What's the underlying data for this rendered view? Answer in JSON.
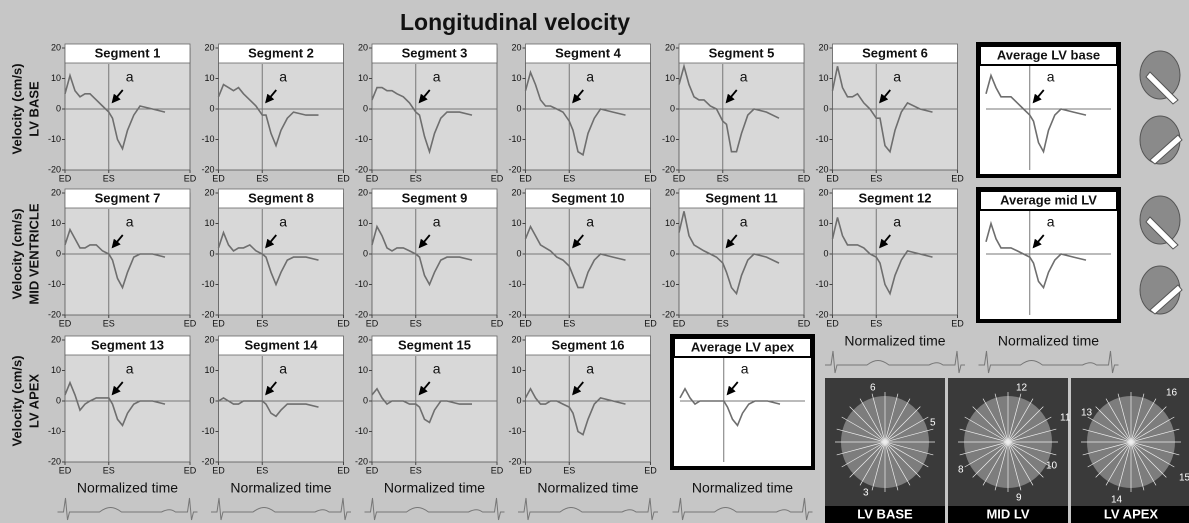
{
  "title": "Longitudinal velocity",
  "row_labels": [
    [
      "Velocity (cm/s)",
      "LV BASE"
    ],
    [
      "Velocity (cm/s)",
      "MID VENTRICLE"
    ],
    [
      "Velocity (cm/s)",
      "LV APEX"
    ]
  ],
  "images": [
    {
      "label": "LV BASE",
      "numbers": [
        "6",
        "5",
        "3"
      ]
    },
    {
      "label": "MID LV",
      "numbers": [
        "12",
        "11",
        "10",
        "9",
        "8"
      ]
    },
    {
      "label": "LV APEX",
      "numbers": [
        "13",
        "16",
        "15",
        "14"
      ]
    }
  ],
  "chart_data": [
    {
      "type": "line",
      "title": "Segment 1",
      "x": [
        0,
        0.04,
        0.08,
        0.12,
        0.16,
        0.2,
        0.25,
        0.3,
        0.35,
        0.38,
        0.42,
        0.46,
        0.5,
        0.55,
        0.6,
        0.7,
        0.8
      ],
      "values": [
        5,
        11,
        6,
        4,
        5,
        5,
        3,
        1,
        -1,
        -3,
        -10,
        -13,
        -7,
        -2,
        1,
        0,
        -1
      ],
      "color": "#6e6e6e",
      "xlim": [
        0,
        1
      ],
      "ylim": [
        -20,
        20
      ],
      "yticks": [
        -20,
        -10,
        0,
        10,
        20
      ],
      "xticks": [
        {
          "value": 0,
          "label": "ED"
        },
        {
          "value": 0.35,
          "label": "ES"
        },
        {
          "value": 1,
          "label": "ED"
        }
      ],
      "hline": 0,
      "vline": 0.35,
      "annotation": "a"
    },
    {
      "type": "line",
      "title": "Segment 2",
      "x": [
        0,
        0.04,
        0.08,
        0.12,
        0.16,
        0.2,
        0.25,
        0.3,
        0.35,
        0.38,
        0.42,
        0.46,
        0.5,
        0.55,
        0.6,
        0.7,
        0.8
      ],
      "values": [
        4,
        8,
        7,
        6,
        7,
        5,
        3,
        1,
        -2,
        -2,
        -8,
        -12,
        -7,
        -3,
        -1,
        -2,
        -2
      ],
      "color": "#6e6e6e",
      "xlim": [
        0,
        1
      ],
      "ylim": [
        -20,
        20
      ],
      "yticks": [
        -20,
        -10,
        0,
        10,
        20
      ],
      "xticks": [
        {
          "value": 0,
          "label": "ED"
        },
        {
          "value": 0.35,
          "label": "ES"
        },
        {
          "value": 1,
          "label": "ED"
        }
      ],
      "hline": 0,
      "vline": 0.35,
      "annotation": "a"
    },
    {
      "type": "line",
      "title": "Segment 3",
      "x": [
        0,
        0.04,
        0.08,
        0.12,
        0.16,
        0.2,
        0.25,
        0.3,
        0.35,
        0.38,
        0.42,
        0.46,
        0.5,
        0.55,
        0.6,
        0.7,
        0.8
      ],
      "values": [
        3,
        7,
        7,
        6,
        6,
        5,
        4,
        2,
        -1,
        -2,
        -9,
        -14,
        -8,
        -3,
        -1,
        -1,
        -2
      ],
      "color": "#6e6e6e",
      "xlim": [
        0,
        1
      ],
      "ylim": [
        -20,
        20
      ],
      "yticks": [
        -20,
        -10,
        0,
        10,
        20
      ],
      "xticks": [
        {
          "value": 0,
          "label": "ED"
        },
        {
          "value": 0.35,
          "label": "ES"
        },
        {
          "value": 1,
          "label": "ED"
        }
      ],
      "hline": 0,
      "vline": 0.35,
      "annotation": "a"
    },
    {
      "type": "line",
      "title": "Segment 4",
      "x": [
        0,
        0.04,
        0.08,
        0.12,
        0.16,
        0.2,
        0.25,
        0.3,
        0.35,
        0.38,
        0.42,
        0.46,
        0.5,
        0.55,
        0.6,
        0.7,
        0.8
      ],
      "values": [
        6,
        12,
        8,
        3,
        1,
        1,
        0,
        -1,
        -4,
        -7,
        -14,
        -15,
        -8,
        -3,
        0,
        -1,
        -2
      ],
      "color": "#6e6e6e",
      "xlim": [
        0,
        1
      ],
      "ylim": [
        -20,
        20
      ],
      "yticks": [
        -20,
        -10,
        0,
        10,
        20
      ],
      "xticks": [
        {
          "value": 0,
          "label": "ED"
        },
        {
          "value": 0.35,
          "label": "ES"
        },
        {
          "value": 1,
          "label": "ED"
        }
      ],
      "hline": 0,
      "vline": 0.35,
      "annotation": "a"
    },
    {
      "type": "line",
      "title": "Segment 5",
      "x": [
        0,
        0.04,
        0.08,
        0.12,
        0.16,
        0.2,
        0.25,
        0.3,
        0.35,
        0.38,
        0.42,
        0.46,
        0.5,
        0.55,
        0.6,
        0.7,
        0.8
      ],
      "values": [
        8,
        14,
        8,
        4,
        3,
        3,
        1,
        0,
        -4,
        -5,
        -14,
        -14,
        -8,
        -2,
        0,
        -1,
        -3
      ],
      "color": "#6e6e6e",
      "xlim": [
        0,
        1
      ],
      "ylim": [
        -20,
        20
      ],
      "yticks": [
        -20,
        -10,
        0,
        10,
        20
      ],
      "xticks": [
        {
          "value": 0,
          "label": "ED"
        },
        {
          "value": 0.35,
          "label": "ES"
        },
        {
          "value": 1,
          "label": "ED"
        }
      ],
      "hline": 0,
      "vline": 0.35,
      "annotation": "a"
    },
    {
      "type": "line",
      "title": "Segment 6",
      "x": [
        0,
        0.04,
        0.08,
        0.12,
        0.16,
        0.2,
        0.25,
        0.3,
        0.35,
        0.38,
        0.42,
        0.46,
        0.5,
        0.55,
        0.6,
        0.7,
        0.8
      ],
      "values": [
        6,
        14,
        7,
        4,
        4,
        5,
        2,
        0,
        -3,
        -3,
        -12,
        -14,
        -7,
        -1,
        2,
        0,
        -1
      ],
      "color": "#6e6e6e",
      "xlim": [
        0,
        1
      ],
      "ylim": [
        -20,
        20
      ],
      "yticks": [
        -20,
        -10,
        0,
        10,
        20
      ],
      "xticks": [
        {
          "value": 0,
          "label": "ED"
        },
        {
          "value": 0.35,
          "label": "ES"
        },
        {
          "value": 1,
          "label": "ED"
        }
      ],
      "hline": 0,
      "vline": 0.35,
      "annotation": "a"
    },
    {
      "type": "line",
      "title": "Segment 7",
      "x": [
        0,
        0.04,
        0.08,
        0.12,
        0.16,
        0.2,
        0.25,
        0.3,
        0.35,
        0.38,
        0.42,
        0.46,
        0.5,
        0.55,
        0.6,
        0.7,
        0.8
      ],
      "values": [
        3,
        8,
        5,
        2,
        2,
        3,
        3,
        1,
        0,
        -2,
        -8,
        -11,
        -6,
        -1,
        0,
        0,
        -1
      ],
      "color": "#6e6e6e",
      "xlim": [
        0,
        1
      ],
      "ylim": [
        -20,
        20
      ],
      "yticks": [
        -20,
        -10,
        0,
        10,
        20
      ],
      "xticks": [
        {
          "value": 0,
          "label": "ED"
        },
        {
          "value": 0.35,
          "label": "ES"
        },
        {
          "value": 1,
          "label": "ED"
        }
      ],
      "hline": 0,
      "vline": 0.35,
      "annotation": "a"
    },
    {
      "type": "line",
      "title": "Segment 8",
      "x": [
        0,
        0.04,
        0.08,
        0.12,
        0.16,
        0.2,
        0.25,
        0.3,
        0.35,
        0.38,
        0.42,
        0.46,
        0.5,
        0.55,
        0.6,
        0.7,
        0.8
      ],
      "values": [
        2,
        7,
        3,
        1,
        2,
        2,
        3,
        1,
        0,
        -1,
        -6,
        -10,
        -6,
        -2,
        -1,
        -1,
        -2
      ],
      "color": "#6e6e6e",
      "xlim": [
        0,
        1
      ],
      "ylim": [
        -20,
        20
      ],
      "yticks": [
        -20,
        -10,
        0,
        10,
        20
      ],
      "xticks": [
        {
          "value": 0,
          "label": "ED"
        },
        {
          "value": 0.35,
          "label": "ES"
        },
        {
          "value": 1,
          "label": "ED"
        }
      ],
      "hline": 0,
      "vline": 0.35,
      "annotation": "a"
    },
    {
      "type": "line",
      "title": "Segment 9",
      "x": [
        0,
        0.04,
        0.08,
        0.12,
        0.16,
        0.2,
        0.25,
        0.3,
        0.35,
        0.38,
        0.42,
        0.46,
        0.5,
        0.55,
        0.6,
        0.7,
        0.8
      ],
      "values": [
        3,
        9,
        6,
        2,
        1,
        2,
        2,
        1,
        0,
        -1,
        -7,
        -10,
        -6,
        -2,
        -1,
        -1,
        -2
      ],
      "color": "#6e6e6e",
      "xlim": [
        0,
        1
      ],
      "ylim": [
        -20,
        20
      ],
      "yticks": [
        -20,
        -10,
        0,
        10,
        20
      ],
      "xticks": [
        {
          "value": 0,
          "label": "ED"
        },
        {
          "value": 0.35,
          "label": "ES"
        },
        {
          "value": 1,
          "label": "ED"
        }
      ],
      "hline": 0,
      "vline": 0.35,
      "annotation": "a"
    },
    {
      "type": "line",
      "title": "Segment 10",
      "x": [
        0,
        0.04,
        0.08,
        0.12,
        0.16,
        0.2,
        0.25,
        0.3,
        0.35,
        0.38,
        0.42,
        0.46,
        0.5,
        0.55,
        0.6,
        0.7,
        0.8
      ],
      "values": [
        5,
        9,
        6,
        3,
        2,
        1,
        -1,
        -2,
        -4,
        -7,
        -11,
        -11,
        -6,
        -2,
        0,
        -1,
        -2
      ],
      "color": "#6e6e6e",
      "xlim": [
        0,
        1
      ],
      "ylim": [
        -20,
        20
      ],
      "yticks": [
        -20,
        -10,
        0,
        10,
        20
      ],
      "xticks": [
        {
          "value": 0,
          "label": "ED"
        },
        {
          "value": 0.35,
          "label": "ES"
        },
        {
          "value": 1,
          "label": "ED"
        }
      ],
      "hline": 0,
      "vline": 0.35,
      "annotation": "a"
    },
    {
      "type": "line",
      "title": "Segment 11",
      "x": [
        0,
        0.04,
        0.08,
        0.12,
        0.16,
        0.2,
        0.25,
        0.3,
        0.35,
        0.38,
        0.42,
        0.46,
        0.5,
        0.55,
        0.6,
        0.7,
        0.8
      ],
      "values": [
        7,
        14,
        6,
        3,
        2,
        1,
        0,
        -1,
        -3,
        -6,
        -11,
        -13,
        -7,
        -2,
        0,
        -1,
        -3
      ],
      "color": "#6e6e6e",
      "xlim": [
        0,
        1
      ],
      "ylim": [
        -20,
        20
      ],
      "yticks": [
        -20,
        -10,
        0,
        10,
        20
      ],
      "xticks": [
        {
          "value": 0,
          "label": "ED"
        },
        {
          "value": 0.35,
          "label": "ES"
        },
        {
          "value": 1,
          "label": "ED"
        }
      ],
      "hline": 0,
      "vline": 0.35,
      "annotation": "a"
    },
    {
      "type": "line",
      "title": "Segment 12",
      "x": [
        0,
        0.04,
        0.08,
        0.12,
        0.16,
        0.2,
        0.25,
        0.3,
        0.35,
        0.38,
        0.42,
        0.46,
        0.5,
        0.55,
        0.6,
        0.7,
        0.8
      ],
      "values": [
        5,
        12,
        6,
        3,
        3,
        3,
        2,
        0,
        -1,
        -3,
        -10,
        -13,
        -7,
        -2,
        1,
        0,
        -1
      ],
      "color": "#6e6e6e",
      "xlim": [
        0,
        1
      ],
      "ylim": [
        -20,
        20
      ],
      "yticks": [
        -20,
        -10,
        0,
        10,
        20
      ],
      "xticks": [
        {
          "value": 0,
          "label": "ED"
        },
        {
          "value": 0.35,
          "label": "ES"
        },
        {
          "value": 1,
          "label": "ED"
        }
      ],
      "hline": 0,
      "vline": 0.35,
      "annotation": "a",
      "xlabel": "Normalized time"
    },
    {
      "type": "line",
      "title": "Segment 13",
      "x": [
        0,
        0.04,
        0.08,
        0.12,
        0.16,
        0.2,
        0.25,
        0.3,
        0.35,
        0.38,
        0.42,
        0.46,
        0.5,
        0.55,
        0.6,
        0.7,
        0.8
      ],
      "values": [
        2,
        6,
        2,
        -3,
        -1,
        0,
        1,
        1,
        1,
        -1,
        -6,
        -8,
        -4,
        -1,
        0,
        0,
        -1
      ],
      "color": "#6e6e6e",
      "xlim": [
        0,
        1
      ],
      "ylim": [
        -20,
        20
      ],
      "yticks": [
        -20,
        -10,
        0,
        10,
        20
      ],
      "xticks": [
        {
          "value": 0,
          "label": "ED"
        },
        {
          "value": 0.35,
          "label": "ES"
        },
        {
          "value": 1,
          "label": "ED"
        }
      ],
      "hline": 0,
      "vline": 0.35,
      "annotation": "a",
      "xlabel": "Normalized time"
    },
    {
      "type": "line",
      "title": "Segment 14",
      "x": [
        0,
        0.04,
        0.08,
        0.12,
        0.16,
        0.2,
        0.25,
        0.3,
        0.35,
        0.38,
        0.42,
        0.46,
        0.5,
        0.55,
        0.6,
        0.7,
        0.8
      ],
      "values": [
        0,
        1,
        0,
        -1,
        -1,
        0,
        0,
        0,
        0,
        -1,
        -4,
        -5,
        -3,
        -1,
        -1,
        -1,
        -2
      ],
      "color": "#6e6e6e",
      "xlim": [
        0,
        1
      ],
      "ylim": [
        -20,
        20
      ],
      "yticks": [
        -20,
        -10,
        0,
        10,
        20
      ],
      "xticks": [
        {
          "value": 0,
          "label": "ED"
        },
        {
          "value": 0.35,
          "label": "ES"
        },
        {
          "value": 1,
          "label": "ED"
        }
      ],
      "hline": 0,
      "vline": 0.35,
      "annotation": "a",
      "xlabel": "Normalized time"
    },
    {
      "type": "line",
      "title": "Segment 15",
      "x": [
        0,
        0.04,
        0.08,
        0.12,
        0.16,
        0.2,
        0.25,
        0.3,
        0.35,
        0.38,
        0.42,
        0.46,
        0.5,
        0.55,
        0.6,
        0.7,
        0.8
      ],
      "values": [
        2,
        4,
        1,
        -1,
        0,
        0,
        0,
        -1,
        -1,
        -2,
        -6,
        -7,
        -3,
        0,
        0,
        -1,
        -1
      ],
      "color": "#6e6e6e",
      "xlim": [
        0,
        1
      ],
      "ylim": [
        -20,
        20
      ],
      "yticks": [
        -20,
        -10,
        0,
        10,
        20
      ],
      "xticks": [
        {
          "value": 0,
          "label": "ED"
        },
        {
          "value": 0.35,
          "label": "ES"
        },
        {
          "value": 1,
          "label": "ED"
        }
      ],
      "hline": 0,
      "vline": 0.35,
      "annotation": "a",
      "xlabel": "Normalized time"
    },
    {
      "type": "line",
      "title": "Segment 16",
      "x": [
        0,
        0.04,
        0.08,
        0.12,
        0.16,
        0.2,
        0.25,
        0.3,
        0.35,
        0.38,
        0.42,
        0.46,
        0.5,
        0.55,
        0.6,
        0.7,
        0.8
      ],
      "values": [
        1,
        4,
        1,
        -1,
        -1,
        0,
        0,
        -1,
        -2,
        -4,
        -10,
        -11,
        -6,
        -1,
        1,
        0,
        -1
      ],
      "color": "#6e6e6e",
      "xlim": [
        0,
        1
      ],
      "ylim": [
        -20,
        20
      ],
      "yticks": [
        -20,
        -10,
        0,
        10,
        20
      ],
      "xticks": [
        {
          "value": 0,
          "label": "ED"
        },
        {
          "value": 0.35,
          "label": "ES"
        },
        {
          "value": 1,
          "label": "ED"
        }
      ],
      "hline": 0,
      "vline": 0.35,
      "annotation": "a",
      "xlabel": "Normalized time"
    },
    {
      "type": "line",
      "title": "Average LV base",
      "x": [
        0,
        0.04,
        0.08,
        0.12,
        0.16,
        0.2,
        0.25,
        0.3,
        0.35,
        0.38,
        0.42,
        0.46,
        0.5,
        0.55,
        0.6,
        0.7,
        0.8
      ],
      "values": [
        5,
        11,
        7,
        4,
        4,
        4,
        2,
        0,
        -2,
        -4,
        -11,
        -14,
        -7,
        -2,
        0,
        -1,
        -2
      ],
      "color": "#6e6e6e",
      "xlim": [
        0,
        1
      ],
      "ylim": [
        -20,
        20
      ],
      "hline": 0,
      "vline": 0.35,
      "annotation": "a"
    },
    {
      "type": "line",
      "title": "Average mid LV",
      "x": [
        0,
        0.04,
        0.08,
        0.12,
        0.16,
        0.2,
        0.25,
        0.3,
        0.35,
        0.38,
        0.42,
        0.46,
        0.5,
        0.55,
        0.6,
        0.7,
        0.8
      ],
      "values": [
        4,
        10,
        5,
        2,
        2,
        2,
        1,
        0,
        -1,
        -3,
        -9,
        -11,
        -6,
        -2,
        0,
        -1,
        -2
      ],
      "color": "#6e6e6e",
      "xlim": [
        0,
        1
      ],
      "ylim": [
        -20,
        20
      ],
      "hline": 0,
      "vline": 0.35,
      "annotation": "a",
      "xlabel": "Normalized time"
    },
    {
      "type": "line",
      "title": "Average LV apex",
      "x": [
        0,
        0.04,
        0.08,
        0.12,
        0.16,
        0.2,
        0.25,
        0.3,
        0.35,
        0.38,
        0.42,
        0.46,
        0.5,
        0.55,
        0.6,
        0.7,
        0.8
      ],
      "values": [
        1,
        4,
        1,
        -1,
        0,
        0,
        0,
        0,
        0,
        -2,
        -6,
        -8,
        -4,
        -1,
        0,
        0,
        -1
      ],
      "color": "#6e6e6e",
      "xlim": [
        0,
        1
      ],
      "ylim": [
        -20,
        20
      ],
      "hline": 0,
      "vline": 0.35,
      "annotation": "a",
      "xlabel": "Normalized time"
    }
  ]
}
